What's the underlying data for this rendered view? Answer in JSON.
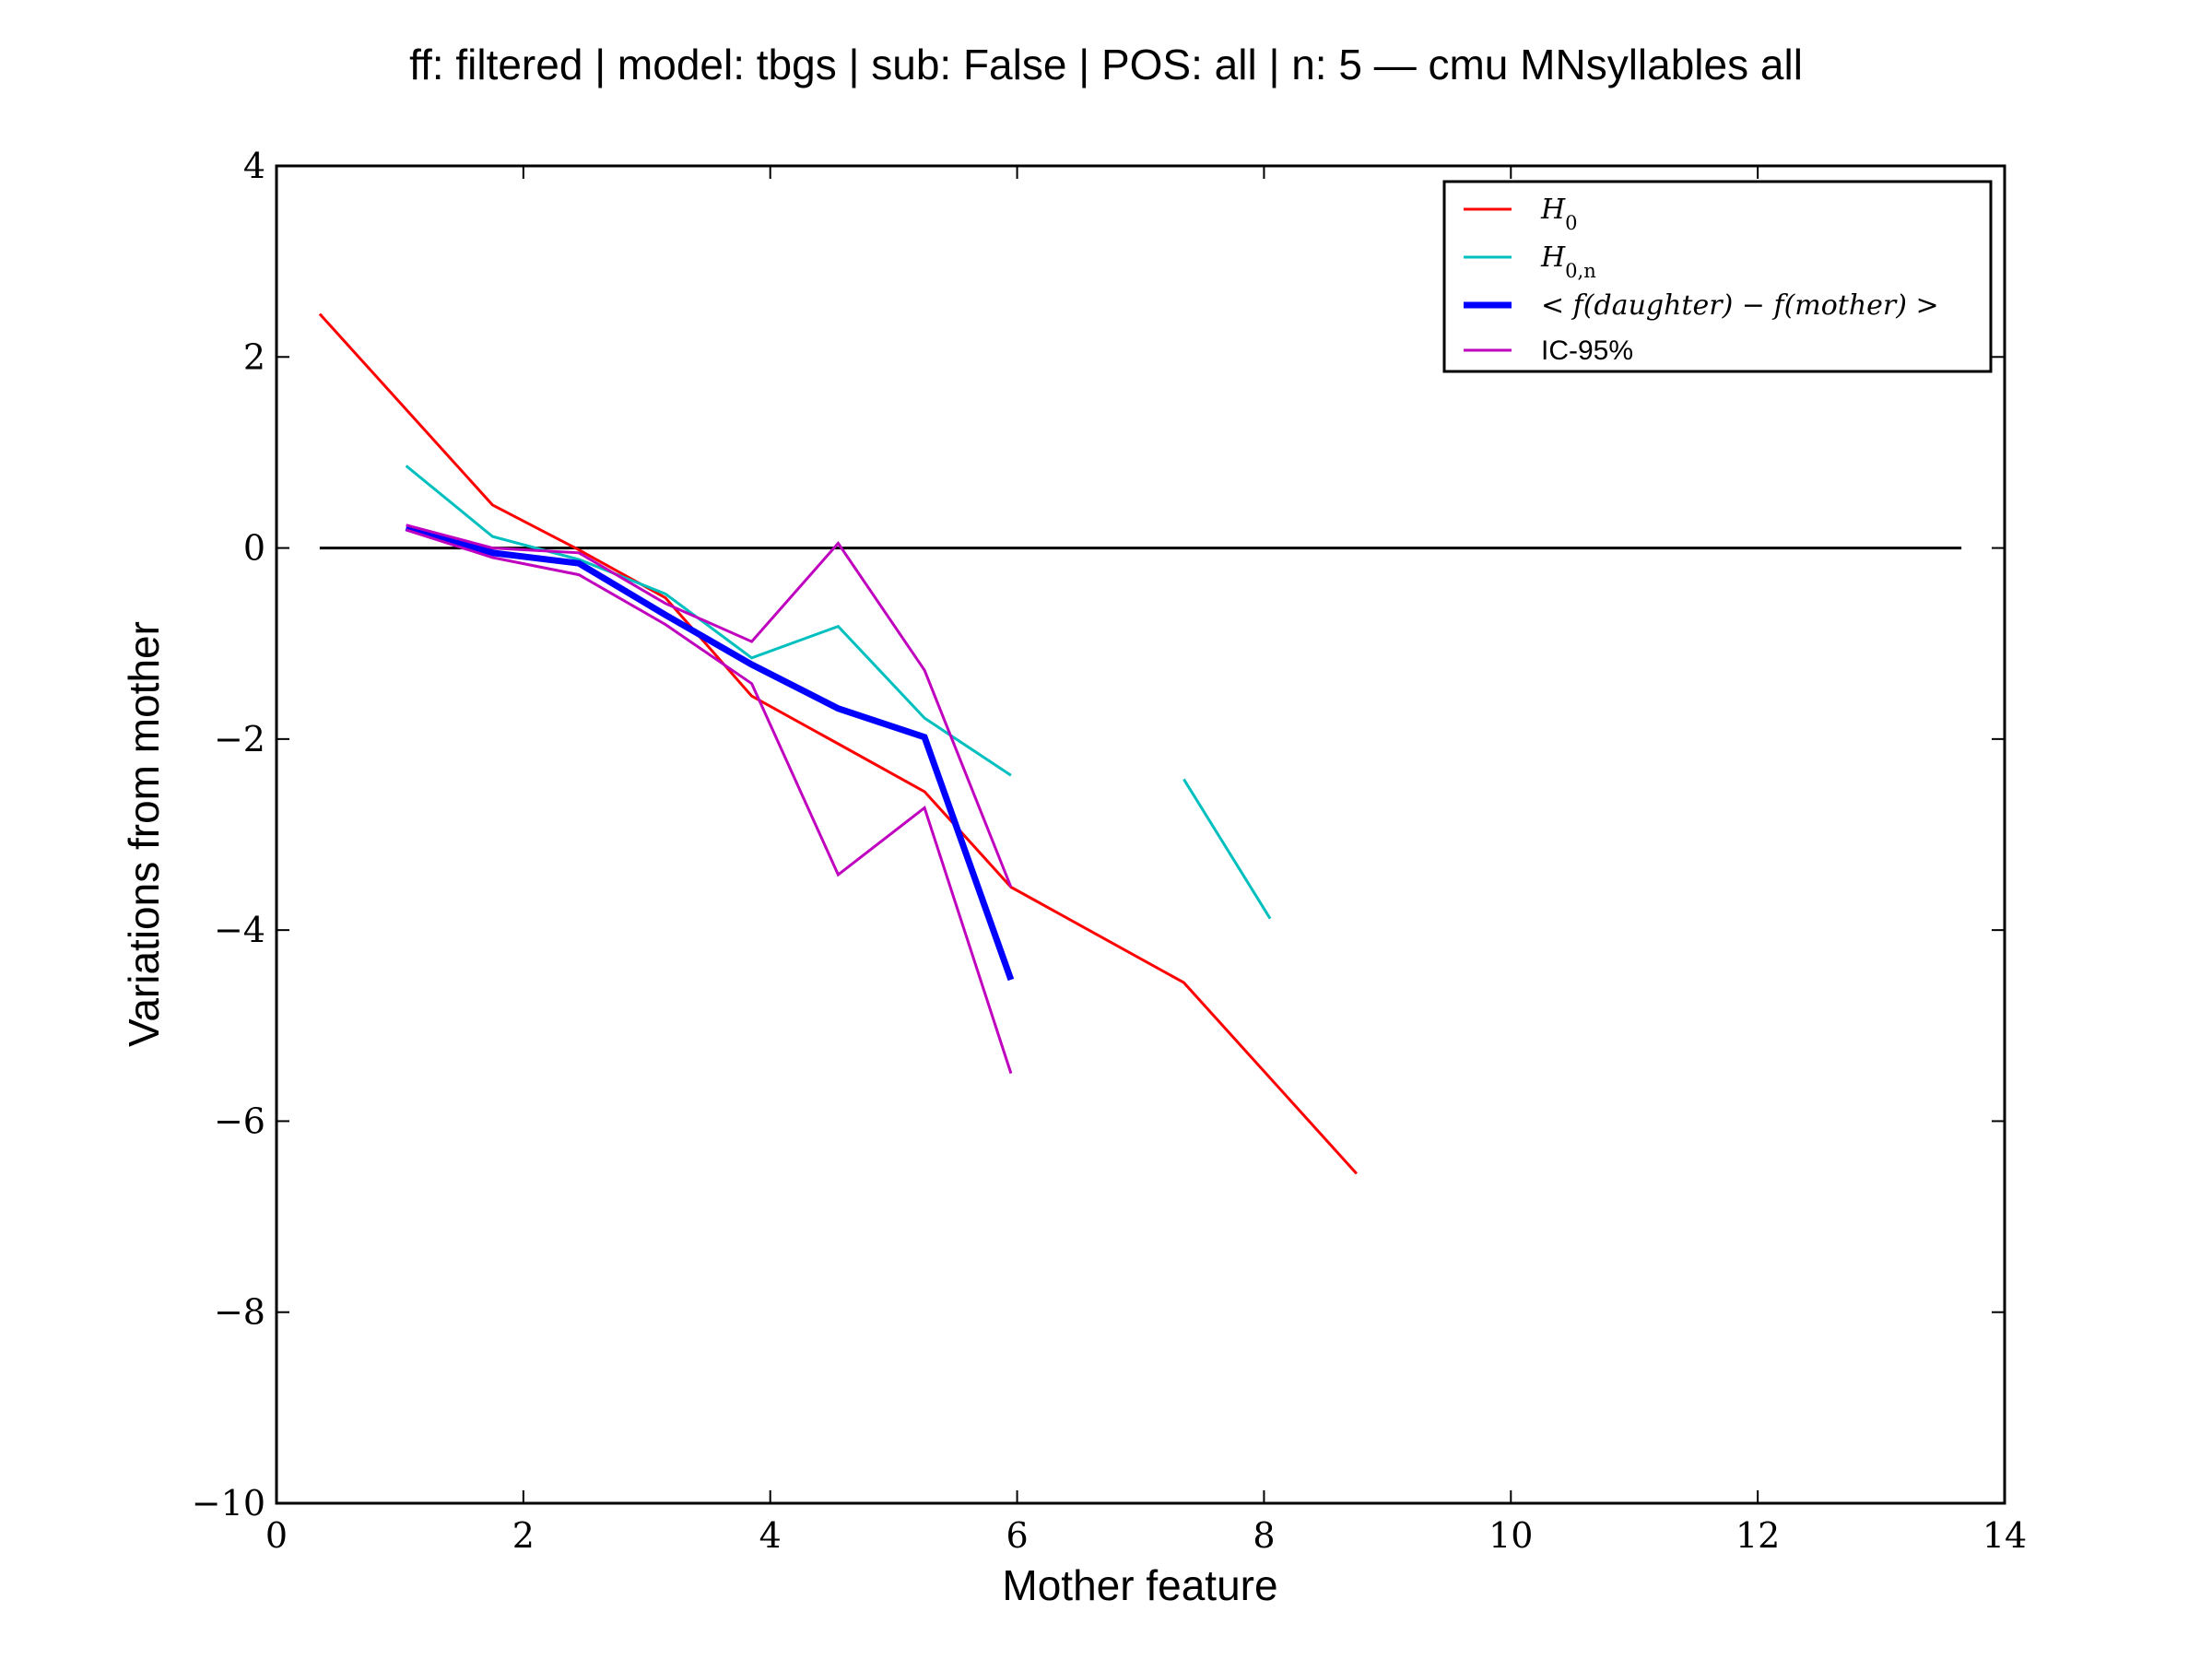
{
  "chart_data": {
    "type": "line",
    "title": "ff: filtered | model: tbgs | sub: False | POS: all | n: 5 — cmu MNsyllables all",
    "xlabel": "Mother feature",
    "ylabel": "Variations from mother",
    "xlim": [
      0,
      14
    ],
    "ylim": [
      -10,
      4
    ],
    "xticks": [
      0,
      2,
      4,
      6,
      8,
      10,
      12,
      14
    ],
    "yticks": [
      -10,
      -8,
      -6,
      -4,
      -2,
      0,
      2,
      4
    ],
    "xtick_labels": [
      "0",
      "2",
      "4",
      "6",
      "8",
      "10",
      "12",
      "14"
    ],
    "ytick_labels": [
      "−10",
      "−8",
      "−6",
      "−4",
      "−2",
      "0",
      "2",
      "4"
    ],
    "grid": false,
    "legend_position": "top-right",
    "reference_line": {
      "y": 0,
      "x_start": 0.35,
      "x_end": 13.65,
      "color": "#000000"
    },
    "series": [
      {
        "name": "H_0",
        "legend_main": "H",
        "legend_sub": "0",
        "color": "#ff0000",
        "width": 3,
        "segments": [
          [
            [
              0.35,
              2.45
            ],
            [
              1.75,
              0.45
            ],
            [
              2.45,
              -0.02
            ],
            [
              3.15,
              -0.52
            ],
            [
              3.85,
              -1.55
            ],
            [
              4.55,
              -2.05
            ],
            [
              5.25,
              -2.55
            ],
            [
              5.95,
              -3.55
            ],
            [
              7.35,
              -4.55
            ],
            [
              8.75,
              -6.55
            ]
          ]
        ]
      },
      {
        "name": "H_0,n",
        "legend_main": "H",
        "legend_sub": "0,n",
        "color": "#00bfbf",
        "width": 3,
        "segments": [
          [
            [
              1.05,
              0.86
            ],
            [
              1.75,
              0.12
            ],
            [
              2.45,
              -0.12
            ],
            [
              3.15,
              -0.48
            ],
            [
              3.85,
              -1.15
            ],
            [
              4.55,
              -0.82
            ],
            [
              5.25,
              -1.78
            ],
            [
              5.95,
              -2.38
            ]
          ],
          [
            [
              7.35,
              -2.42
            ],
            [
              8.05,
              -3.88
            ]
          ]
        ]
      },
      {
        "name": "< f(daughter) − f(mother) >",
        "legend_main": "< f(daughter) − f(mother) >",
        "legend_sub": "",
        "color": "#0000ff",
        "width": 7,
        "segments": [
          [
            [
              1.05,
              0.21
            ],
            [
              1.75,
              -0.05
            ],
            [
              2.45,
              -0.16
            ],
            [
              3.15,
              -0.7
            ],
            [
              3.85,
              -1.22
            ],
            [
              4.55,
              -1.68
            ],
            [
              5.25,
              -1.98
            ],
            [
              5.95,
              -4.52
            ]
          ]
        ]
      },
      {
        "name": "IC-95%",
        "legend_main": "IC-95%",
        "legend_sub": "",
        "color": "#bf00bf",
        "width": 3,
        "segments": [
          [
            [
              1.05,
              0.24
            ],
            [
              1.75,
              0.0
            ],
            [
              2.45,
              -0.05
            ],
            [
              3.15,
              -0.58
            ],
            [
              3.85,
              -0.98
            ],
            [
              4.55,
              0.05
            ],
            [
              5.25,
              -1.28
            ],
            [
              5.95,
              -3.55
            ]
          ],
          [
            [
              1.05,
              0.19
            ],
            [
              1.75,
              -0.1
            ],
            [
              2.45,
              -0.28
            ],
            [
              3.15,
              -0.8
            ],
            [
              3.85,
              -1.42
            ],
            [
              4.55,
              -3.42
            ],
            [
              5.25,
              -2.72
            ],
            [
              5.95,
              -5.5
            ]
          ]
        ]
      }
    ]
  }
}
